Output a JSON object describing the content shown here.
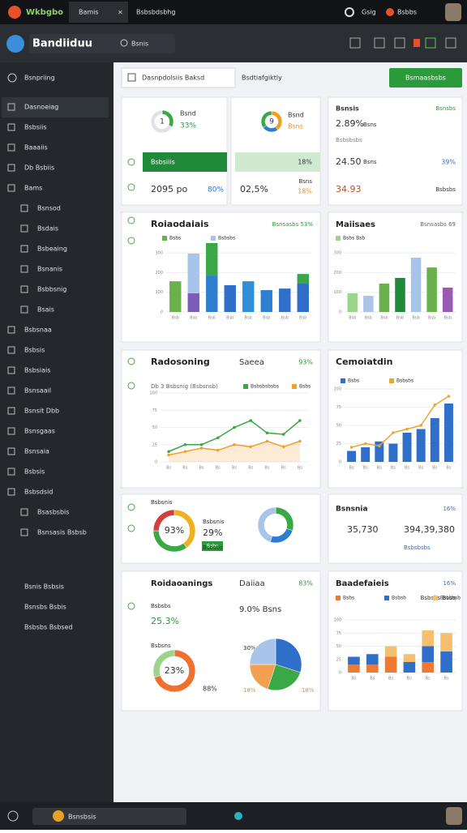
{
  "topbar": {
    "app": "Wkbgbo",
    "tab": "Bamis",
    "url": "Bsbsbdsbhg",
    "user": "Gsig",
    "status": "Bsbbs"
  },
  "header": {
    "title": "Bandiiduu",
    "search": "Bsnis"
  },
  "sidebar": {
    "section": "Bsnpriing",
    "items": [
      "Dasnoeiag",
      "Bsbsiis",
      "Baaaiis",
      "Db Bsbiis",
      "Bams",
      "Bsnsod",
      "Bsdais",
      "Bsbeaing",
      "Bsnanis",
      "Bsbbsnig",
      "Bsais",
      "Bsbsnaa",
      "Bsbsis",
      "Bsbsiais",
      "Bsnsaail",
      "Bsnsit Dbb",
      "Bsnsgaas",
      "Bsnsaia",
      "Bsbsis",
      "Bsbsdsid",
      "Bsasbsbis",
      "Bsnsasis Bsbsb"
    ],
    "footer": [
      "Bsnis Bsbsis",
      "Bsnsbs Bsbis",
      "Bsbsbs Bsbsed"
    ]
  },
  "toolbar": {
    "filter": "Dasnpdolsiis Baksd",
    "range": "Bsdtiafgiktly",
    "button": "Bsmaasbsbs"
  },
  "taskbar": {
    "search": "Bsnsbsis"
  },
  "cards": [
    {
      "texts": [
        "Bsnd",
        "33%",
        "Bsbsiiis",
        "2095 po",
        "80%"
      ]
    },
    {
      "texts": [
        "Bsnd",
        "Bsns",
        "18%",
        "02,5%",
        "Bsns",
        "18%"
      ]
    },
    {
      "texts": [
        "Bsnsis",
        "Bsnsbs",
        "2.89%",
        "Bsns",
        "Bsbsbsbs",
        "24.50",
        "Bsns",
        "39%",
        "34.93",
        "Bsbsbs"
      ]
    },
    {
      "texts": [
        "Roiaodaiais",
        "Bsnsasbs 53%"
      ]
    },
    {
      "texts": [
        "Maiisaes",
        "Bsnsasbs 69"
      ]
    },
    {
      "texts": [
        "Radosoning",
        "Saeea",
        "93%",
        "Db 3 Bsbsnig (Bsbsnsb)"
      ]
    },
    {
      "texts": [
        "Cemoiatdin"
      ]
    },
    {
      "texts": [
        "Bsbsnis",
        "29%",
        "Bsbs",
        "Bsbsnis",
        "Bsbsbs"
      ]
    },
    {
      "texts": [
        "Bsnsnia",
        "16%",
        "35,730",
        "394,39,380",
        "Bsbsbsbs"
      ]
    },
    {
      "texts": [
        "Roidaoanings",
        "Daiiaa",
        "83%",
        "Bsbsbs",
        "25.3%",
        "9.0% Bsns",
        "Bsbsns",
        "88%",
        "30%",
        "18%",
        "18%"
      ]
    },
    {
      "texts": [
        "Baadefaieis",
        "16%",
        "Bsbsbs Bsbs"
      ]
    }
  ],
  "charts": [
    {
      "type": "donut",
      "center": "1",
      "values": [
        33,
        67
      ],
      "colors": [
        "#3aa845",
        "#dfe3e8"
      ]
    },
    {
      "type": "donut",
      "center": "9",
      "values": [
        40,
        25,
        35
      ],
      "colors": [
        "#f0a020",
        "#2f7fd0",
        "#3aa845"
      ]
    },
    {
      "type": "bar",
      "categories": [
        "Bsb",
        "Bsb",
        "Bsb",
        "Bsb",
        "Bsb",
        "Bsb",
        "Bsb",
        "Bsb"
      ],
      "ylim": [
        0,
        350
      ],
      "yticks": [
        0,
        100,
        200,
        300
      ],
      "series": [
        {
          "name": "Bsbs",
          "colors": [
            "#6ab04c",
            "#7b5cb8",
            "#2f7fd0",
            "#2f6fc9",
            "#2f8fd8",
            "#2f7fd0",
            "#2f6fc9",
            "#2f6fc9"
          ],
          "values": [
            156,
            95,
            185,
            136,
            156,
            111,
            119,
            144
          ]
        },
        {
          "name": "Bsbsbs",
          "colors": [
            "#a9c4ea",
            "#a9c4ea",
            "#3aa845",
            "#a9c4ea",
            "#a9c4ea",
            "#a9c4ea",
            "#a9c4ea",
            "#3aa845"
          ],
          "values": [
            0,
            202,
            165,
            0,
            0,
            0,
            0,
            49
          ]
        }
      ]
    },
    {
      "type": "bar",
      "categories": [
        "Bsb",
        "Bsb",
        "Bsb",
        "Bsb",
        "Bsb",
        "Bsb",
        "Bsb"
      ],
      "ylim": [
        0,
        350
      ],
      "yticks": [
        0,
        100,
        200,
        300
      ],
      "series": [
        {
          "name": "Bsbs Bsb",
          "colors": [
            "#9bd48a",
            "#a9c4ea",
            "#6ab04c",
            "#1f8a3a",
            "#a9c4ea",
            "#6ab04c",
            "#9b59b6"
          ],
          "values": [
            95,
            82,
            144,
            173,
            276,
            226,
            124
          ]
        }
      ]
    },
    {
      "type": "line",
      "categories": [
        "Bs",
        "Bs",
        "Bs",
        "Bs",
        "Bs",
        "Bs",
        "Bs",
        "Bs",
        "Bs"
      ],
      "ylim": [
        0,
        100
      ],
      "yticks": [
        0,
        25,
        50,
        75,
        100
      ],
      "series": [
        {
          "name": "Bsbsbsbsbs",
          "color": "#3aa845",
          "values": [
            15,
            25,
            25,
            35,
            50,
            60,
            42,
            40,
            60
          ]
        },
        {
          "name": "Bsbs",
          "color": "#f0a030",
          "area": true,
          "values": [
            10,
            15,
            20,
            17,
            25,
            22,
            30,
            22,
            30
          ]
        }
      ]
    },
    {
      "type": "combo",
      "categories": [
        "Bs",
        "Bs",
        "Bs",
        "Bs",
        "Bs",
        "Bs",
        "Bs",
        "Bs"
      ],
      "ylim": [
        0,
        100
      ],
      "yticks": [
        0,
        25,
        50,
        75,
        100
      ],
      "series": [
        {
          "name": "Bsbs",
          "type": "bar",
          "color": "#2f6fc9",
          "values": [
            15,
            20,
            28,
            25,
            40,
            45,
            60,
            80
          ]
        },
        {
          "name": "Bsbsbs",
          "type": "line",
          "color": "#e8a830",
          "values": [
            20,
            25,
            22,
            40,
            45,
            50,
            78,
            90
          ]
        }
      ]
    },
    {
      "type": "donut",
      "center": "93%",
      "values": [
        40,
        35,
        25
      ],
      "colors": [
        "#f0b020",
        "#3aa845",
        "#d04040"
      ]
    },
    {
      "type": "donut",
      "values": [
        30,
        25,
        45
      ],
      "colors": [
        "#3aa845",
        "#2f7fd0",
        "#a9c4ea"
      ]
    },
    {
      "type": "donut",
      "center": "23%",
      "values": [
        70,
        30
      ],
      "colors": [
        "#f07030",
        "#9bd48a"
      ]
    },
    {
      "type": "pie",
      "values": [
        30,
        25,
        20,
        25
      ],
      "colors": [
        "#2f6fc9",
        "#3aa845",
        "#f0a050",
        "#a9c4ea"
      ]
    },
    {
      "type": "bar",
      "categories": [
        "Bs",
        "Bs",
        "Bs",
        "Bs",
        "Bs",
        "Bs"
      ],
      "ylim": [
        0,
        100
      ],
      "yticks": [
        0,
        25,
        50,
        75,
        100
      ],
      "series": [
        {
          "name": "Bsbs",
          "color": "#f07830",
          "values": [
            15,
            15,
            30,
            0,
            20,
            0
          ]
        },
        {
          "name": "Bsbsb",
          "color": "#2f6fc9",
          "values": [
            15,
            20,
            0,
            20,
            30,
            40
          ]
        },
        {
          "name": "Bsbsbsb",
          "color": "#f4c070",
          "values": [
            0,
            0,
            20,
            15,
            30,
            35
          ]
        }
      ]
    }
  ]
}
